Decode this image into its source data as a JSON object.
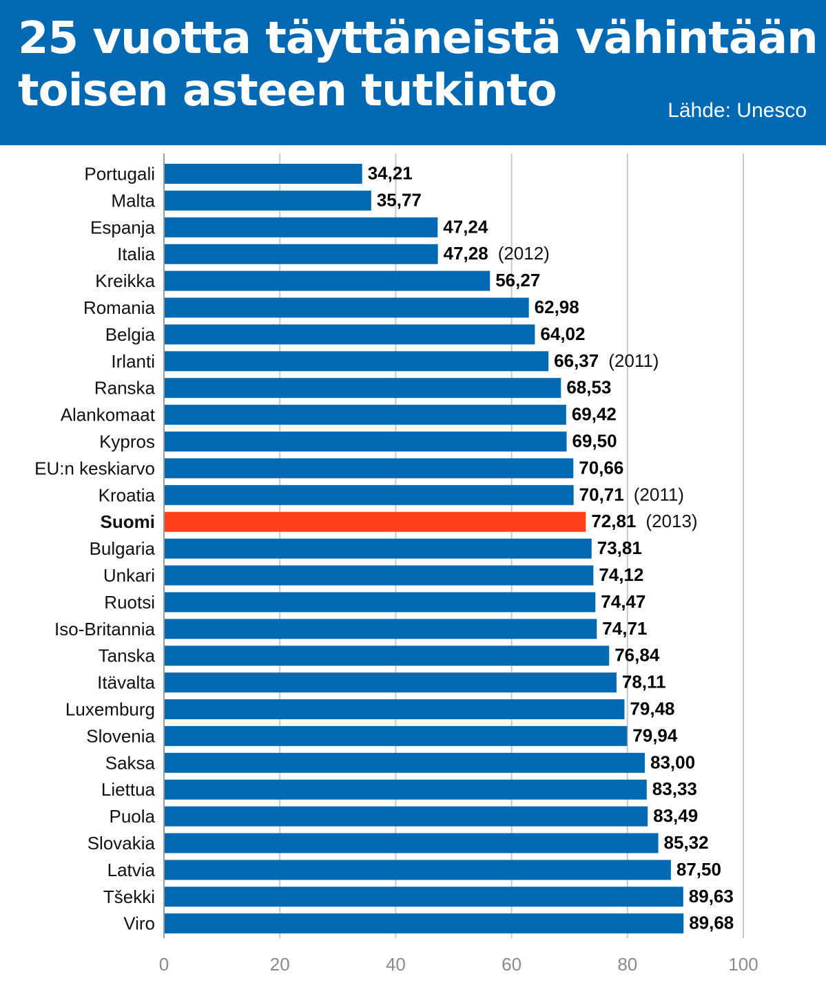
{
  "header": {
    "title_line1": "25 vuotta täyttäneistä vähintään",
    "title_line2": "toisen asteen tutkinto",
    "source": "Lähde: Unesco"
  },
  "colors": {
    "header_bg": "#0069b4",
    "bar": "#0069b4",
    "highlight_bar": "#ff4019",
    "gridline": "#c8c8c8"
  },
  "chart_data": {
    "type": "bar",
    "orientation": "horizontal",
    "title": "25 vuotta täyttäneistä vähintään toisen asteen tutkinto",
    "xlabel": "",
    "ylabel": "",
    "xlim": [
      0,
      100
    ],
    "xticks": [
      0,
      20,
      40,
      60,
      80,
      100
    ],
    "grid": true,
    "highlight": "Suomi",
    "categories": [
      "Portugali",
      "Malta",
      "Espanja",
      "Italia",
      "Kreikka",
      "Romania",
      "Belgia",
      "Irlanti",
      "Ranska",
      "Alankomaat",
      "Kypros",
      "EU:n keskiarvo",
      "Kroatia",
      "Suomi",
      "Bulgaria",
      "Unkari",
      "Ruotsi",
      "Iso-Britannia",
      "Tanska",
      "Itävalta",
      "Luxemburg",
      "Slovenia",
      "Saksa",
      "Liettua",
      "Puola",
      "Slovakia",
      "Latvia",
      "Tšekki",
      "Viro"
    ],
    "values": [
      34.21,
      35.77,
      47.24,
      47.28,
      56.27,
      62.98,
      64.02,
      66.37,
      68.53,
      69.42,
      69.5,
      70.66,
      70.71,
      72.81,
      73.81,
      74.12,
      74.47,
      74.71,
      76.84,
      78.11,
      79.48,
      79.94,
      83.0,
      83.33,
      83.49,
      85.32,
      87.5,
      89.63,
      89.68
    ],
    "value_labels": [
      "34,21",
      "35,77",
      "47,24",
      "47,28",
      "56,27",
      "62,98",
      "64,02",
      "66,37",
      "68,53",
      "69,42",
      "69,50",
      "70,66",
      "70,71",
      "72,81",
      "73,81",
      "74,12",
      "74,47",
      "74,71",
      "76,84",
      "78,11",
      "79,48",
      "79,94",
      "83,00",
      "83,33",
      "83,49",
      "85,32",
      "87,50",
      "89,63",
      "89,68"
    ],
    "year_notes": [
      "",
      "",
      "",
      "(2012)",
      "",
      "",
      "",
      "(2011)",
      "",
      "",
      "",
      "",
      "(2011)",
      "(2013)",
      "",
      "",
      "",
      "",
      "",
      "",
      "",
      "",
      "",
      "",
      "",
      "",
      "",
      "",
      ""
    ]
  }
}
